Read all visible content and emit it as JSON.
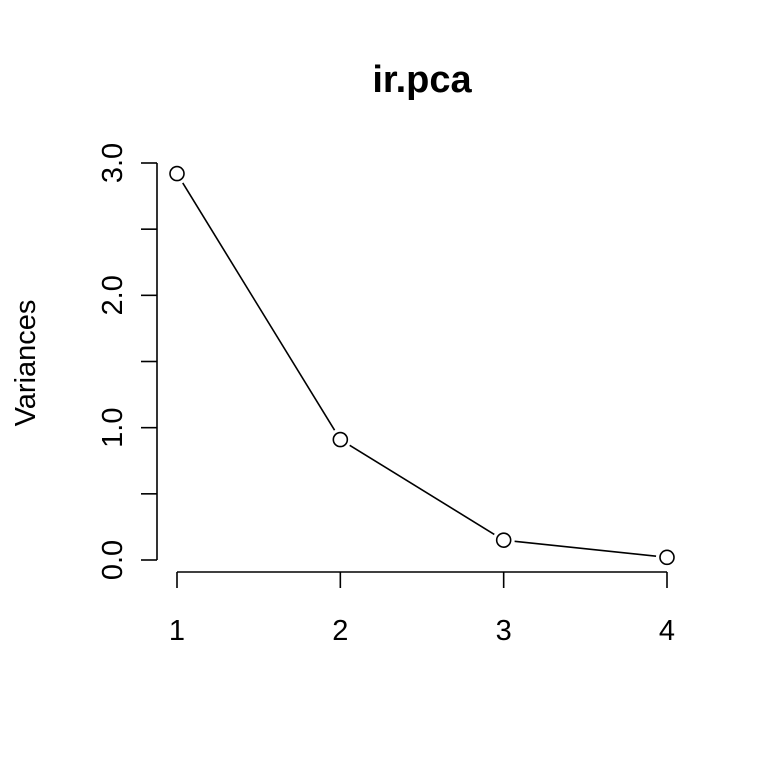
{
  "chart_data": {
    "type": "line",
    "title": "ir.pca",
    "xlabel": "",
    "ylabel": "Variances",
    "x": [
      1,
      2,
      3,
      4
    ],
    "xticks": [
      "1",
      "2",
      "3",
      "4"
    ],
    "yticks": [
      "0.0",
      "1.0",
      "2.0",
      "3.0"
    ],
    "ytick_values": [
      0,
      0.5,
      1,
      1.5,
      2,
      2.5,
      3
    ],
    "ytick_labeled": [
      0,
      1,
      2,
      3
    ],
    "ylim": [
      0,
      3
    ],
    "xlim": [
      1,
      4
    ],
    "series": [
      {
        "values": [
          2.92,
          0.91,
          0.15,
          0.02
        ]
      }
    ],
    "marker": "open-circle",
    "grid": false,
    "legend": "none"
  }
}
